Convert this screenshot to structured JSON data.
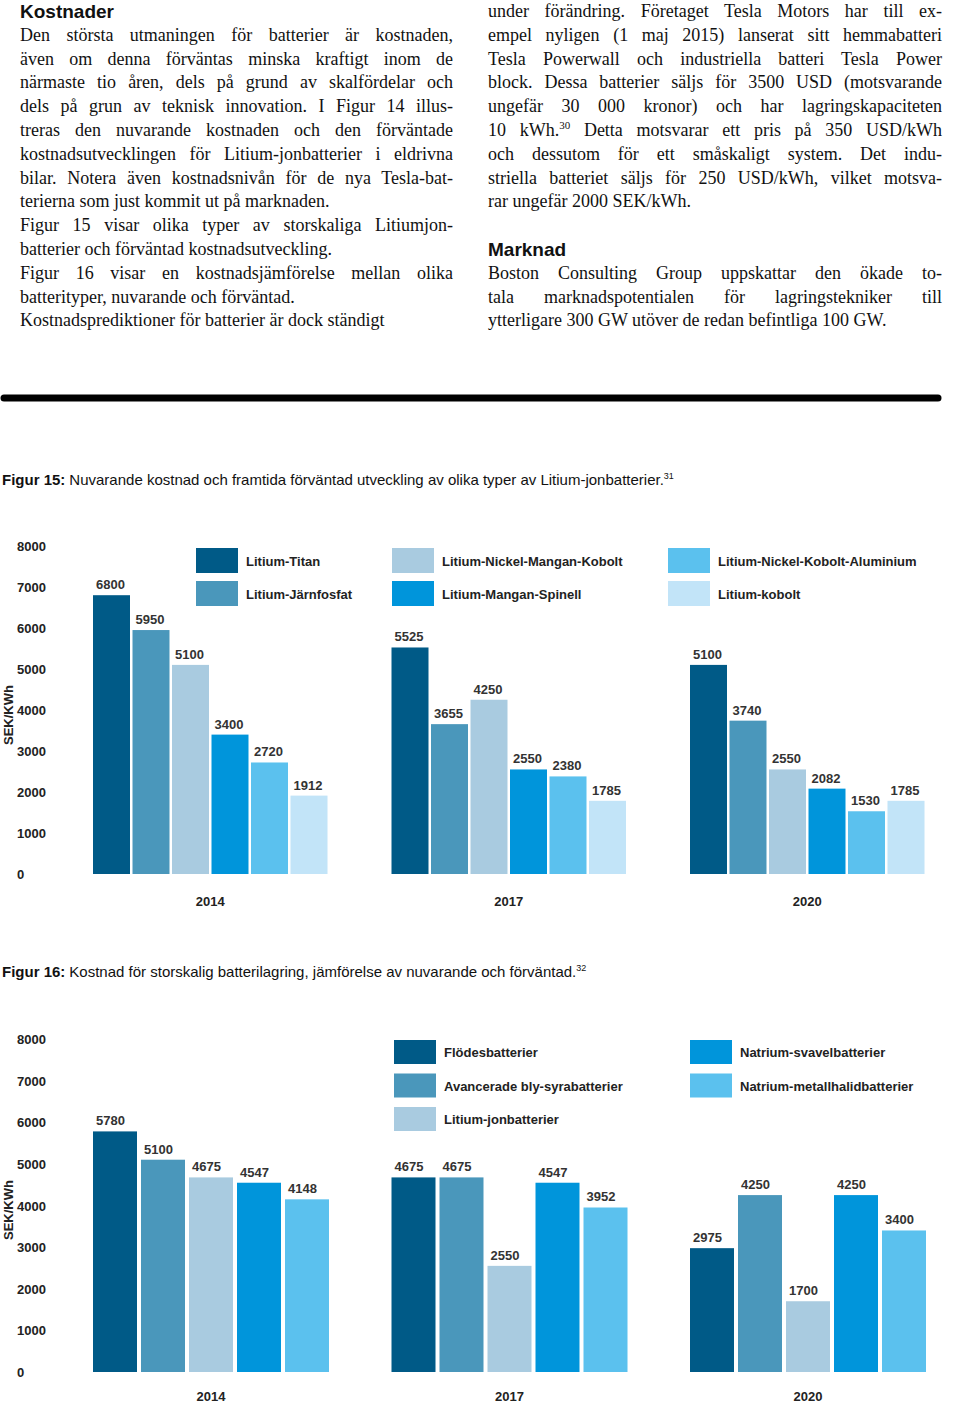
{
  "columns": [
    {
      "blocks": [
        {
          "heading": "Kostnader"
        },
        {
          "lines": [
            "Den största utmaningen för batterier är kostnaden,",
            "även om denna förväntas minska kraftigt inom de",
            "närmaste tio åren, dels på grund av skalfördelar och",
            "dels på grun av teknisk innovation. I Figur 14 illus-",
            "treras den nuvarande kostnaden och den förväntade",
            "kostnadsutvecklingen för Litium-jonbatterier i eldrivna",
            "bilar. Notera även kostnadsnivån för de nya Tesla-bat-",
            "terierna som just kommit ut på marknaden."
          ]
        },
        {
          "lines": [
            "Figur 15 visar olika typer av storskaliga Litiumjon-",
            "batterier och förväntad kostnadsutveckling."
          ]
        },
        {
          "lines": [
            "Figur 16 visar en kostnadsjämförelse mellan olika",
            "batterityper, nuvarande och förväntad."
          ]
        },
        {
          "lines": [
            "Kostnadsprediktioner för batterier är dock ständigt"
          ]
        }
      ]
    },
    {
      "blocks": [
        {
          "lines": [
            "under förändring. Företaget Tesla Motors har till ex-",
            "empel nyligen (1 maj 2015) lanserat sitt hemmabatteri",
            "Tesla Powerwall och industriella batteri Tesla Power",
            "block. Dessa batterier säljs för 3500 USD (motsvarande",
            "ungefär 30 000 kronor) och har lagringskapaciteten",
            {
              "before": "10 kWh.",
              "sup": "30",
              "after": " Detta motsvarar ett pris på 350 USD/kWh"
            },
            "och dessutom för ett småskaligt system. Det indu-",
            "striella batteriet säljs för 250 USD/kWh, vilket motsva-",
            "rar ungefär 2000 SEK/kWh."
          ]
        },
        {
          "spacer": true
        },
        {
          "heading": "Marknad"
        },
        {
          "lines": [
            "Boston Consulting Group uppskattar den ökade to-",
            "tala marknadspotentialen för lagringstekniker till",
            "ytterligare 300 GW utöver de redan befintliga 100 GW."
          ]
        }
      ]
    }
  ],
  "chart_data": [
    {
      "type": "bar",
      "figure_label": "Figur 15:",
      "title": "Nuvarande kostnad och framtida förväntad utveckling av olika typer av Litium-jonbatterier.",
      "title_footnote": "31",
      "ylabel": "SEK/KWh",
      "categories": [
        "2014",
        "2017",
        "2020"
      ],
      "series": [
        {
          "name": "Litium-Titan",
          "color": "#005a87",
          "values": [
            6800,
            5525,
            5100
          ]
        },
        {
          "name": "Litium-Järnfosfat",
          "color": "#4a97bb",
          "values": [
            5950,
            3655,
            3740
          ]
        },
        {
          "name": "Litium-Nickel-Mangan-Kobolt",
          "color": "#a9cbe0",
          "values": [
            5100,
            4250,
            2550
          ]
        },
        {
          "name": "Litium-Mangan-Spinell",
          "color": "#0095db",
          "values": [
            3400,
            2550,
            2082
          ]
        },
        {
          "name": "Litium-Nickel-Kobolt-Aluminium",
          "color": "#5bc1ee",
          "values": [
            2720,
            2380,
            1530
          ]
        },
        {
          "name": "Litium-kobolt",
          "color": "#c2e4f8",
          "values": [
            1912,
            1785,
            1785
          ]
        }
      ],
      "ylim": [
        0,
        8000
      ],
      "yticks": [
        0,
        1000,
        2000,
        3000,
        4000,
        5000,
        6000,
        7000,
        8000
      ],
      "legend": "top",
      "data_labels": true
    },
    {
      "type": "bar",
      "figure_label": "Figur 16:",
      "title": "Kostnad för storskalig batterilagring, jämförelse av nuvarande och förväntad.",
      "title_footnote": "32",
      "ylabel": "SEK/KWh",
      "categories": [
        "2014",
        "2017",
        "2020"
      ],
      "series": [
        {
          "name": "Flödesbatterier",
          "color": "#005a87",
          "values": [
            5780,
            4675,
            2975
          ]
        },
        {
          "name": "Avancerade bly-syrabatterier",
          "color": "#4a97bb",
          "values": [
            5100,
            4675,
            4250
          ]
        },
        {
          "name": "Litium-jonbatterier",
          "color": "#a9cbe0",
          "values": [
            4675,
            2550,
            1700
          ]
        },
        {
          "name": "Natrium-svavelbatterier",
          "color": "#0095db",
          "values": [
            4547,
            4547,
            4250
          ]
        },
        {
          "name": "Natrium-metallhalidbatterier",
          "color": "#5bc1ee",
          "values": [
            4148,
            3952,
            3400
          ]
        }
      ],
      "ylim": [
        0,
        8000
      ],
      "yticks": [
        0,
        1000,
        2000,
        3000,
        4000,
        5000,
        6000,
        7000,
        8000
      ],
      "legend": "top",
      "data_labels": true
    }
  ]
}
